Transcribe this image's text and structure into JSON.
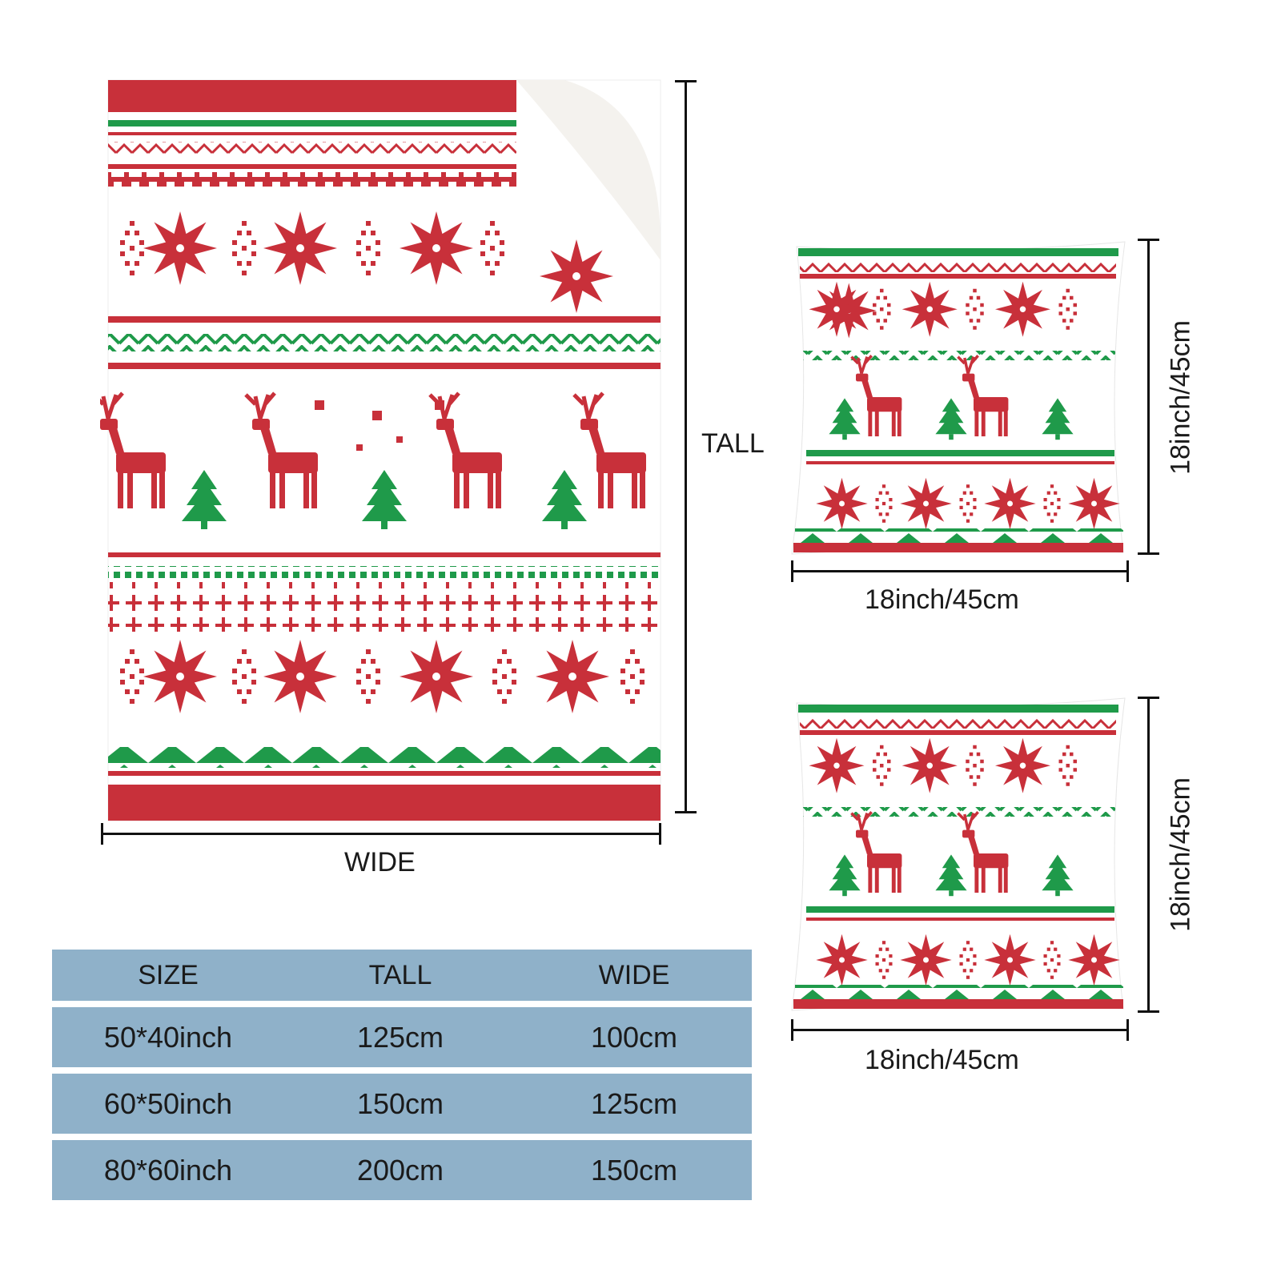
{
  "colors": {
    "red": "#c8303a",
    "green": "#1f9a4a",
    "white": "#ffffff",
    "table_bg": "#8fb1c9"
  },
  "blanket": {
    "tall_label": "TALL",
    "wide_label": "WIDE",
    "image": "christmas-blanket-icon"
  },
  "pillow_top": {
    "height_label": "18inch/45cm",
    "width_label": "18inch/45cm",
    "image": "pillow-icon"
  },
  "pillow_bottom": {
    "height_label": "18inch/45cm",
    "width_label": "18inch/45cm",
    "image": "pillow-icon"
  },
  "size_table": {
    "headers": [
      "SIZE",
      "TALL",
      "WIDE"
    ],
    "rows": [
      [
        "50*40inch",
        "125cm",
        "100cm"
      ],
      [
        "60*50inch",
        "150cm",
        "125cm"
      ],
      [
        "80*60inch",
        "200cm",
        "150cm"
      ]
    ]
  }
}
